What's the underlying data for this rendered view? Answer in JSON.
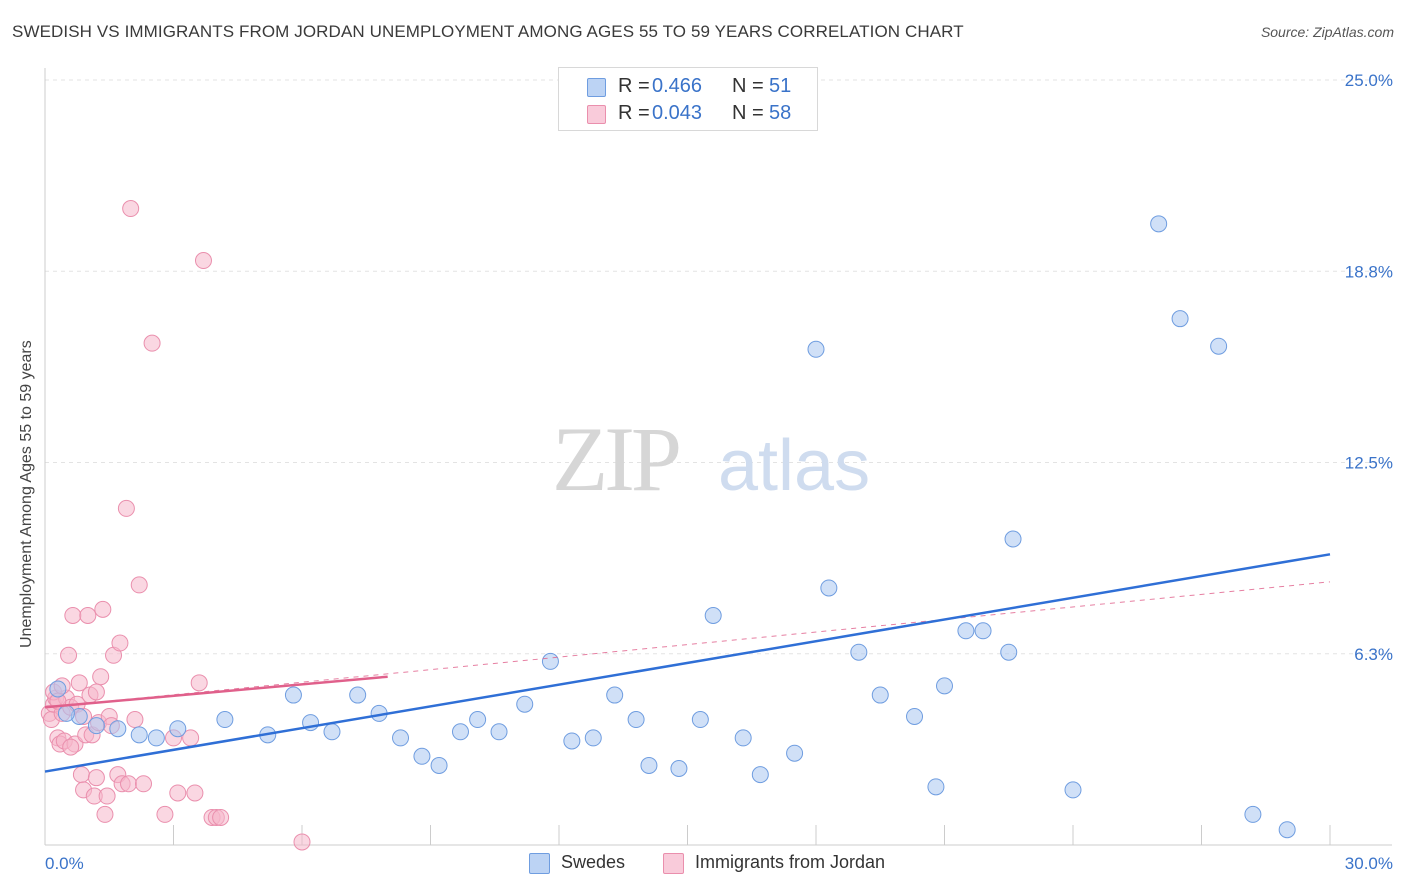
{
  "title": "SWEDISH VS IMMIGRANTS FROM JORDAN UNEMPLOYMENT AMONG AGES 55 TO 59 YEARS CORRELATION CHART",
  "source": "Source: ZipAtlas.com",
  "watermark": {
    "zip": "ZIP",
    "atlas": "atlas"
  },
  "legend": {
    "r_label": "R =",
    "n_label": "N =",
    "rows": [
      {
        "name": "Swedes",
        "r": "0.466",
        "n": "51"
      },
      {
        "name": "Immigrants from Jordan",
        "r": "0.043",
        "n": "58"
      }
    ]
  },
  "colors": {
    "blue_fill": "#a9c6f0",
    "blue_stroke": "#6f9de0",
    "blue_line": "#2f6fd6",
    "pink_fill": "#f5b7cb",
    "pink_stroke": "#ea8fad",
    "pink_line": "#e0608b",
    "axis_text": "#3a73c9",
    "grid": "#e3e3e3"
  },
  "chart_data": {
    "type": "scatter",
    "title": "SWEDISH VS IMMIGRANTS FROM JORDAN UNEMPLOYMENT AMONG AGES 55 TO 59 YEARS CORRELATION CHART",
    "xlabel": "",
    "ylabel": "Unemployment Among Ages 55 to 59 years",
    "xlim": [
      0,
      30
    ],
    "ylim": [
      0,
      25
    ],
    "x_tick_labels": [
      {
        "value": 0,
        "label": "0.0%"
      },
      {
        "value": 30,
        "label": "30.0%"
      }
    ],
    "y_tick_labels": [
      {
        "value": 6.25,
        "label": "6.3%"
      },
      {
        "value": 12.5,
        "label": "12.5%"
      },
      {
        "value": 18.75,
        "label": "18.8%"
      },
      {
        "value": 25,
        "label": "25.0%"
      }
    ],
    "series": [
      {
        "name": "Swedes",
        "color": "#a9c6f0",
        "trend": {
          "x0": 0,
          "y0": 2.4,
          "x1": 30,
          "y1": 9.5
        },
        "points": [
          [
            0.3,
            5.1
          ],
          [
            0.8,
            4.2
          ],
          [
            1.7,
            3.8
          ],
          [
            2.2,
            3.6
          ],
          [
            2.6,
            3.5
          ],
          [
            3.1,
            3.8
          ],
          [
            4.2,
            4.1
          ],
          [
            5.2,
            3.6
          ],
          [
            5.8,
            4.9
          ],
          [
            6.2,
            4.0
          ],
          [
            6.7,
            3.7
          ],
          [
            7.3,
            4.9
          ],
          [
            7.8,
            4.3
          ],
          [
            8.3,
            3.5
          ],
          [
            8.8,
            2.9
          ],
          [
            9.2,
            2.6
          ],
          [
            9.7,
            3.7
          ],
          [
            10.1,
            4.1
          ],
          [
            10.6,
            3.7
          ],
          [
            11.2,
            4.6
          ],
          [
            11.8,
            6.0
          ],
          [
            12.3,
            3.4
          ],
          [
            12.8,
            3.5
          ],
          [
            13.3,
            4.9
          ],
          [
            13.8,
            4.1
          ],
          [
            14.1,
            2.6
          ],
          [
            14.8,
            2.5
          ],
          [
            15.3,
            4.1
          ],
          [
            15.6,
            7.5
          ],
          [
            16.3,
            3.5
          ],
          [
            16.7,
            2.3
          ],
          [
            17.5,
            3.0
          ],
          [
            18.0,
            16.2
          ],
          [
            18.3,
            8.4
          ],
          [
            19.0,
            6.3
          ],
          [
            19.5,
            4.9
          ],
          [
            20.3,
            4.2
          ],
          [
            20.8,
            1.9
          ],
          [
            21.0,
            5.2
          ],
          [
            21.5,
            7.0
          ],
          [
            21.9,
            7.0
          ],
          [
            22.5,
            6.3
          ],
          [
            22.6,
            10.0
          ],
          [
            24.0,
            1.8
          ],
          [
            26.0,
            20.3
          ],
          [
            26.5,
            17.2
          ],
          [
            27.4,
            16.3
          ],
          [
            28.2,
            1.0
          ],
          [
            29.0,
            0.5
          ],
          [
            0.5,
            4.3
          ],
          [
            1.2,
            3.9
          ]
        ]
      },
      {
        "name": "Immigrants from Jordan",
        "color": "#f5b7cb",
        "trend": {
          "x0": 0,
          "y0": 4.5,
          "x1": 8,
          "y1": 5.5
        },
        "trend_ext": {
          "x0": 0,
          "y0": 4.5,
          "x1": 30,
          "y1": 8.6
        },
        "points": [
          [
            0.1,
            4.3
          ],
          [
            0.15,
            4.1
          ],
          [
            0.2,
            4.6
          ],
          [
            0.25,
            4.8
          ],
          [
            0.3,
            3.5
          ],
          [
            0.35,
            3.3
          ],
          [
            0.4,
            4.3
          ],
          [
            0.45,
            3.4
          ],
          [
            0.5,
            4.8
          ],
          [
            0.55,
            6.2
          ],
          [
            0.6,
            4.5
          ],
          [
            0.65,
            7.5
          ],
          [
            0.7,
            3.3
          ],
          [
            0.75,
            4.6
          ],
          [
            0.8,
            5.3
          ],
          [
            0.85,
            2.3
          ],
          [
            0.9,
            1.8
          ],
          [
            0.95,
            3.6
          ],
          [
            1.0,
            7.5
          ],
          [
            1.05,
            4.9
          ],
          [
            1.1,
            3.6
          ],
          [
            1.15,
            1.6
          ],
          [
            1.2,
            2.2
          ],
          [
            1.25,
            4.0
          ],
          [
            1.3,
            5.5
          ],
          [
            1.35,
            7.7
          ],
          [
            1.4,
            1.0
          ],
          [
            1.45,
            1.6
          ],
          [
            1.5,
            4.2
          ],
          [
            1.55,
            3.9
          ],
          [
            1.6,
            6.2
          ],
          [
            1.7,
            2.3
          ],
          [
            1.75,
            6.6
          ],
          [
            1.8,
            2.0
          ],
          [
            1.9,
            11.0
          ],
          [
            1.95,
            2.0
          ],
          [
            2.0,
            20.8
          ],
          [
            2.1,
            4.1
          ],
          [
            2.2,
            8.5
          ],
          [
            2.3,
            2.0
          ],
          [
            2.5,
            16.4
          ],
          [
            2.8,
            1.0
          ],
          [
            3.0,
            3.5
          ],
          [
            3.1,
            1.7
          ],
          [
            3.4,
            3.5
          ],
          [
            3.5,
            1.7
          ],
          [
            3.6,
            5.3
          ],
          [
            3.7,
            19.1
          ],
          [
            3.9,
            0.9
          ],
          [
            4.0,
            0.9
          ],
          [
            4.1,
            0.9
          ],
          [
            6.0,
            0.1
          ],
          [
            0.2,
            5.0
          ],
          [
            0.4,
            5.2
          ],
          [
            0.3,
            4.7
          ],
          [
            0.6,
            3.2
          ],
          [
            0.9,
            4.2
          ],
          [
            1.2,
            5.0
          ]
        ]
      }
    ]
  }
}
